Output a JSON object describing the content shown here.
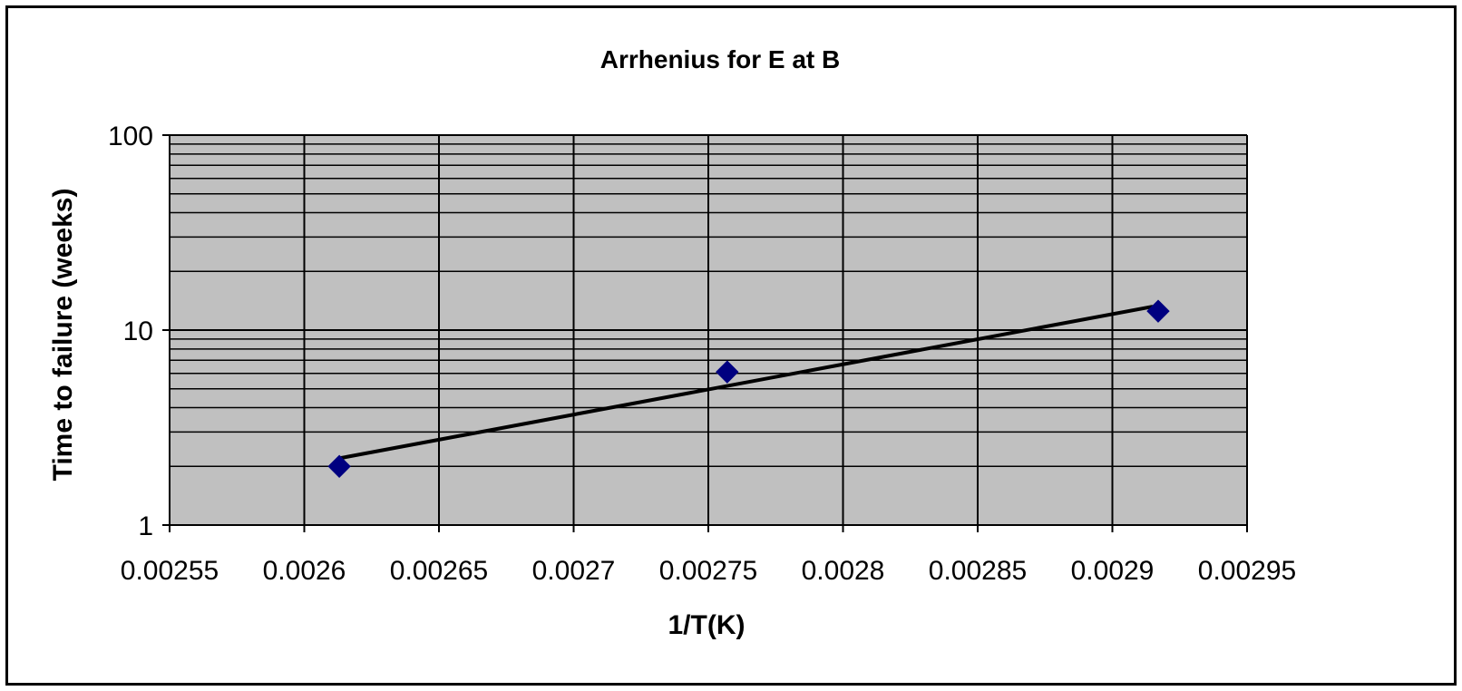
{
  "chart_data": {
    "type": "scatter",
    "title": "Arrhenius for E at B",
    "xlabel": "1/T(K)",
    "ylabel": "Time to failure (weeks)",
    "xlim": [
      0.00255,
      0.00295
    ],
    "ylim": [
      1,
      100
    ],
    "y_scale": "log",
    "x_ticks": [
      0.00255,
      0.0026,
      0.00265,
      0.0027,
      0.00275,
      0.0028,
      0.00285,
      0.0029,
      0.00295
    ],
    "x_tick_labels": [
      "0.00255",
      "0.0026",
      "0.00265",
      "0.0027",
      "0.00275",
      "0.0028",
      "0.00285",
      "0.0029",
      "0.00295"
    ],
    "y_ticks": [
      1,
      10,
      100
    ],
    "y_tick_labels": [
      "1",
      "10",
      "100"
    ],
    "grid": true,
    "plot_background": "#c0c0c0",
    "marker_color": "#000080",
    "marker_shape": "diamond",
    "trendline": {
      "type": "exponential",
      "from": [
        0.002613,
        2.2
      ],
      "to": [
        0.002915,
        13.2
      ],
      "color": "#000000"
    },
    "series": [
      {
        "x": [
          0.002613,
          0.002757,
          0.002917
        ],
        "y": [
          2.0,
          6.1,
          12.5
        ]
      }
    ]
  }
}
